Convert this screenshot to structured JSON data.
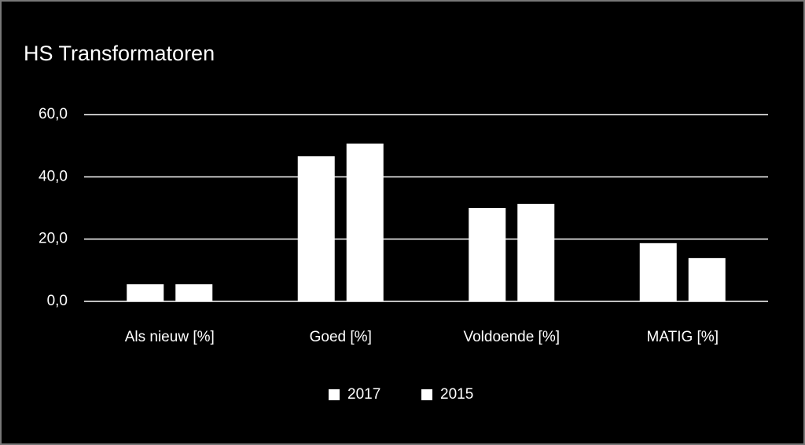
{
  "chart_data": {
    "type": "bar",
    "title": "HS Transformatoren",
    "categories": [
      "Als nieuw [%]",
      "Goed [%]",
      "Voldoende [%]",
      "MATIG [%]"
    ],
    "series": [
      {
        "name": "2017",
        "color": "#ffffff",
        "values": [
          5.5,
          46.6,
          30.0,
          18.7
        ]
      },
      {
        "name": "2015",
        "color": "#ffffff",
        "values": [
          5.5,
          50.7,
          31.3,
          13.9
        ]
      }
    ],
    "ylim": [
      0,
      60
    ],
    "yticks": [
      {
        "value": 0,
        "label": "0,0"
      },
      {
        "value": 20,
        "label": "20,0"
      },
      {
        "value": 40,
        "label": "40,0"
      },
      {
        "value": 60,
        "label": "60,0"
      }
    ],
    "grid": true,
    "legend": "bottom"
  }
}
